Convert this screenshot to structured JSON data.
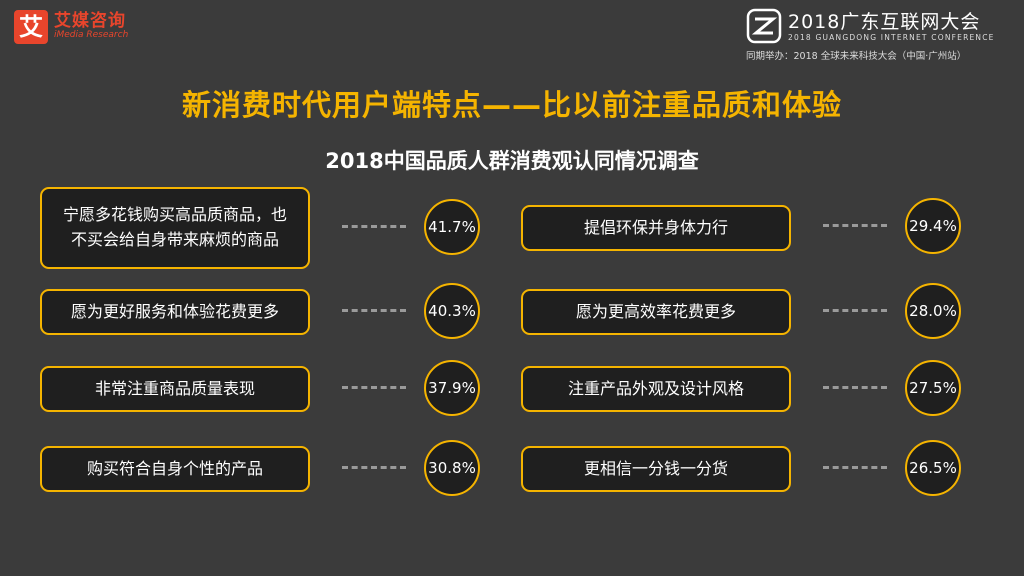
{
  "brand": {
    "logo_glyph": "艾",
    "name_cn": "艾媒咨询",
    "name_en": "iMedia Research"
  },
  "conference": {
    "title_cn": "2018广东互联网大会",
    "title_en": "2018 GUANGDONG INTERNET CONFERENCE",
    "co_host": "同期举办：2018 全球未来科技大会（中国·广州站）"
  },
  "title": "新消费时代用户端特点——比以前注重品质和体验",
  "subtitle": "2018中国品质人群消费观认同情况调查",
  "left_items": [
    {
      "label": "宁愿多花钱购买高品质商品，也不买会给自身带来麻烦的商品",
      "value": "41.7%"
    },
    {
      "label": "愿为更好服务和体验花费更多",
      "value": "40.3%"
    },
    {
      "label": "非常注重商品质量表现",
      "value": "37.9%"
    },
    {
      "label": "购买符合自身个性的产品",
      "value": "30.8%"
    }
  ],
  "right_items": [
    {
      "label": "提倡环保并身体力行",
      "value": "29.4%"
    },
    {
      "label": "愿为更高效率花费更多",
      "value": "28.0%"
    },
    {
      "label": "注重产品外观及设计风格",
      "value": "27.5%"
    },
    {
      "label": "更相信一分钱一分货",
      "value": "26.5%"
    }
  ],
  "colors": {
    "accent": "#f5b400",
    "brand": "#e8452c",
    "background": "#3b3b3b"
  }
}
